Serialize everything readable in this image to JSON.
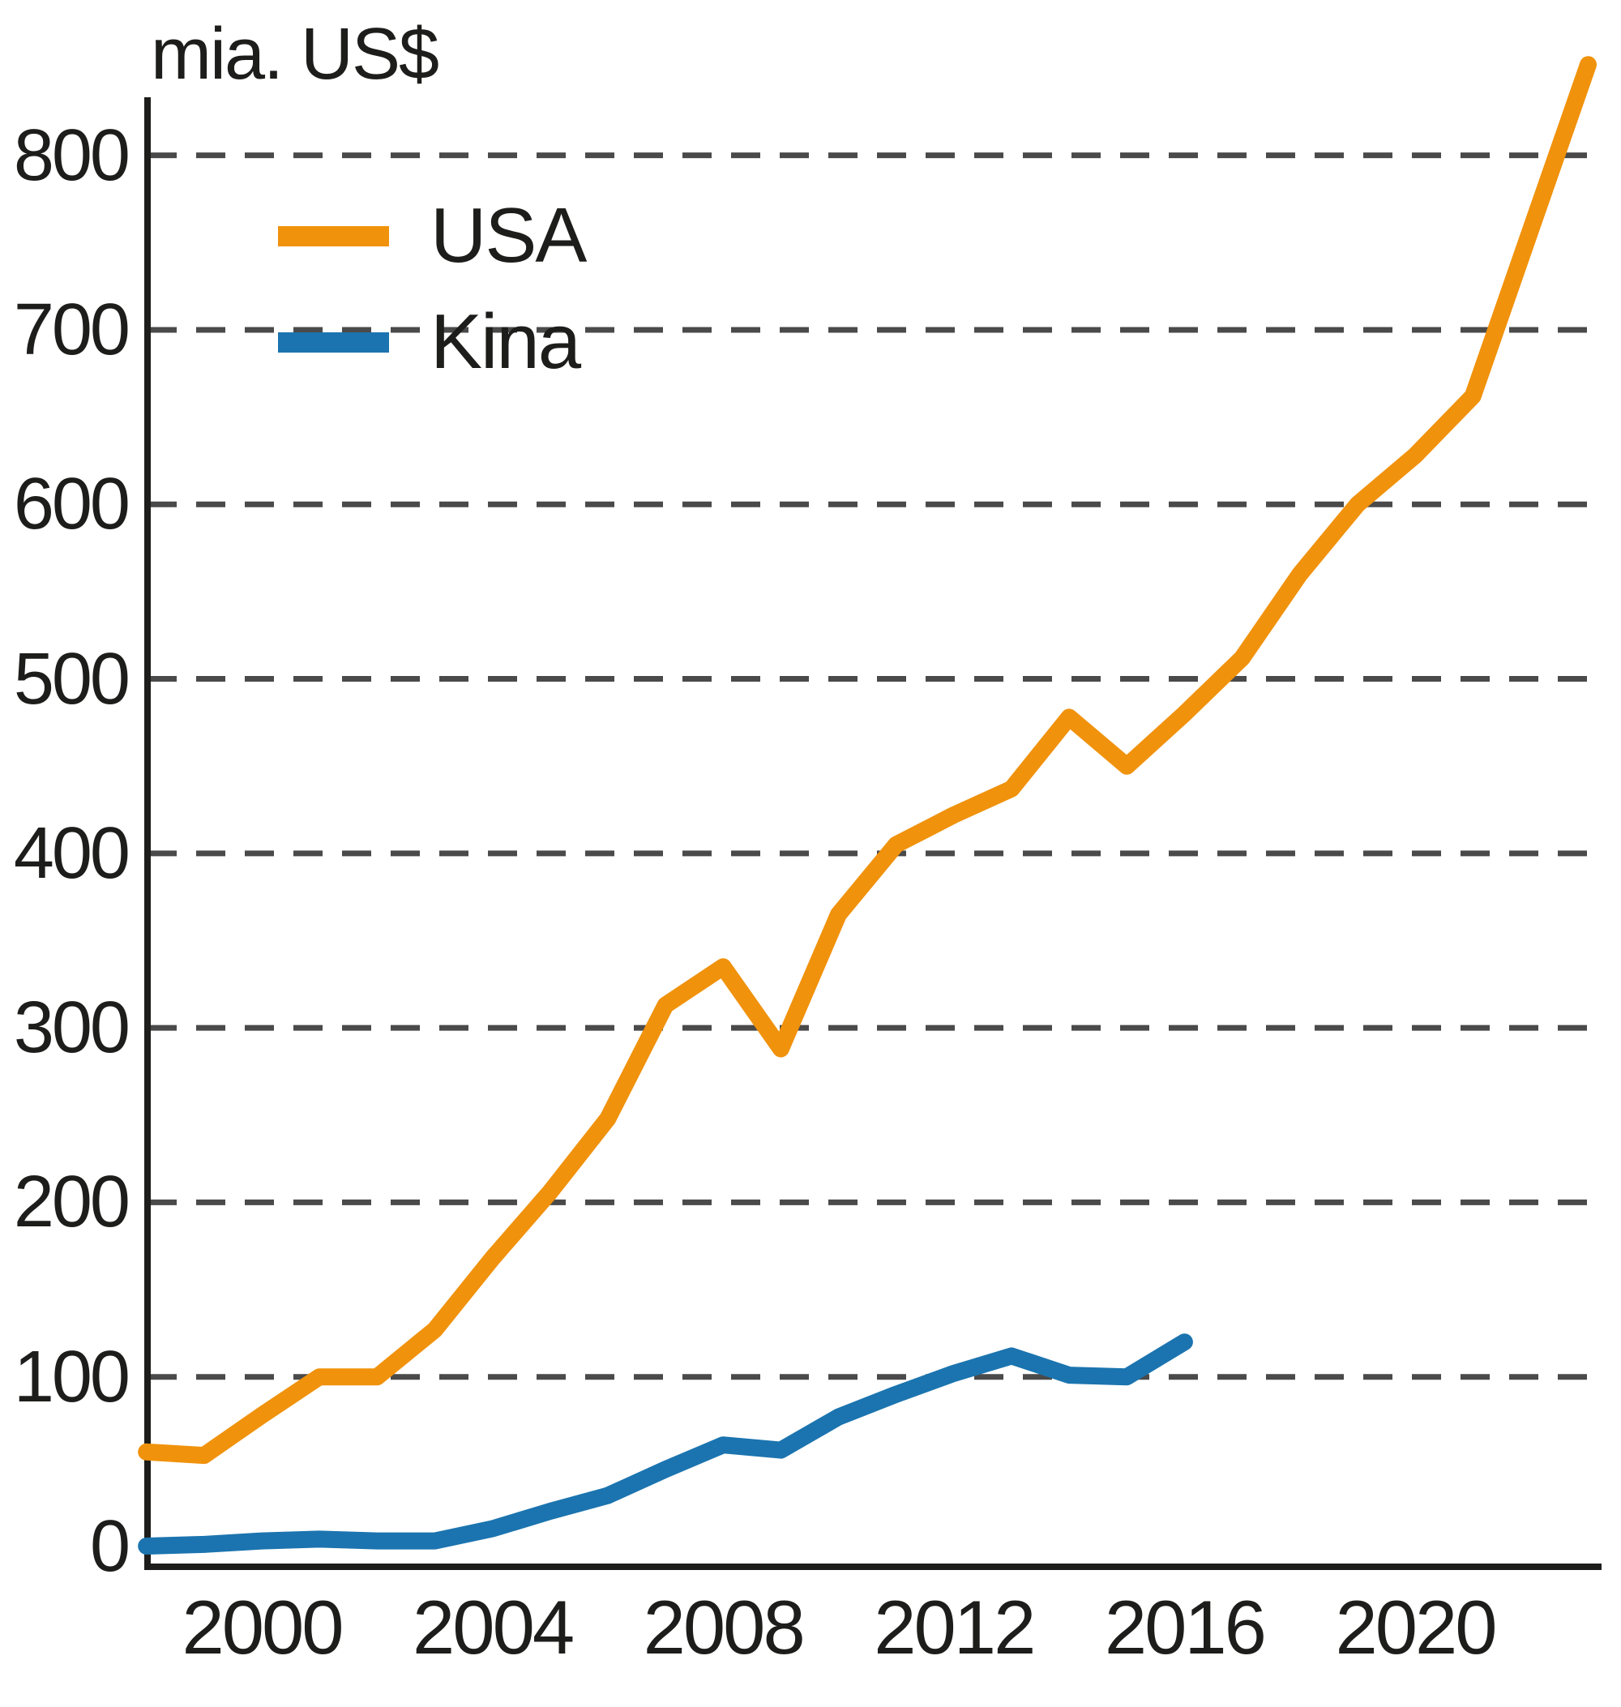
{
  "chart_data": {
    "type": "line",
    "title": "",
    "ylabel": "mia. US$",
    "xlabel": "",
    "x_tick_years": [
      2000,
      2004,
      2008,
      2012,
      2016,
      2020
    ],
    "y_ticks": [
      0,
      100,
      200,
      300,
      400,
      500,
      600,
      700,
      800
    ],
    "xlim": [
      1998,
      2023.2
    ],
    "ylim": [
      0,
      870
    ],
    "grid": "horizontal-dashed",
    "legend_position": "top-left-inside",
    "grid_color": "#4a4a4a",
    "axis_color": "#1d1d1b",
    "series": [
      {
        "name": "USA",
        "color": "#F0920C",
        "start_year": 1998,
        "years": [
          1998,
          1999,
          2000,
          2001,
          2002,
          2003,
          2004,
          2005,
          2006,
          2007,
          2008,
          2009,
          2010,
          2011,
          2012,
          2013,
          2014,
          2015,
          2016,
          2017,
          2018,
          2019,
          2020,
          2021,
          2022,
          2023
        ],
        "values": [
          57,
          55,
          78,
          100,
          100,
          127,
          168,
          206,
          248,
          313,
          335,
          288,
          365,
          405,
          422,
          437,
          478,
          450,
          480,
          512,
          560,
          600,
          628,
          662,
          757,
          852
        ]
      },
      {
        "name": "Kina",
        "color": "#1B74AF",
        "start_year": 1998,
        "years": [
          1998,
          1999,
          2000,
          2001,
          2002,
          2003,
          2004,
          2005,
          2006,
          2007,
          2008,
          2009,
          2010,
          2011,
          2012,
          2013,
          2014,
          2015,
          2016
        ],
        "values": [
          3,
          4,
          6,
          7,
          6,
          6,
          13,
          23,
          32,
          47,
          61,
          58,
          77,
          90,
          102,
          112,
          101,
          100,
          120
        ]
      }
    ]
  }
}
